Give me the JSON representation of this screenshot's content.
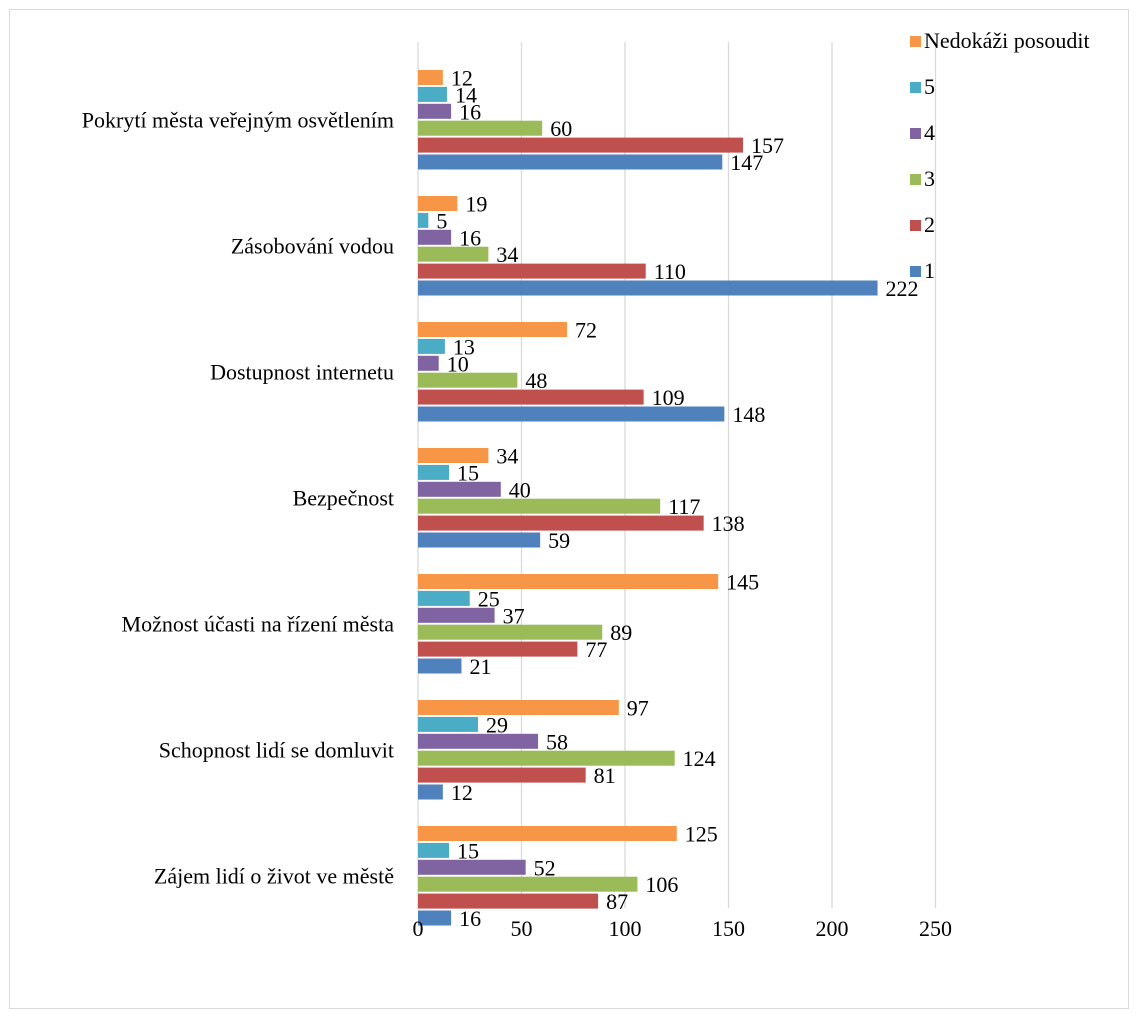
{
  "chart_data": {
    "type": "bar",
    "orientation": "horizontal",
    "categories": [
      "Pokrytí města veřejným osvětlením",
      "Zásobování vodou",
      "Dostupnost internetu",
      "Bezpečnost",
      "Možnost účasti na řízení města",
      "Schopnost lidí se domluvit",
      "Zájem lidí o život ve městě"
    ],
    "series": [
      {
        "name": "Nedokáži posoudit",
        "color": "#F79646",
        "values": [
          12,
          19,
          72,
          34,
          145,
          97,
          125
        ]
      },
      {
        "name": "5",
        "color": "#4BACC6",
        "values": [
          14,
          5,
          13,
          15,
          25,
          29,
          15
        ]
      },
      {
        "name": "4",
        "color": "#8064A2",
        "values": [
          16,
          16,
          10,
          40,
          37,
          58,
          52
        ]
      },
      {
        "name": "3",
        "color": "#9BBB59",
        "values": [
          60,
          34,
          48,
          117,
          89,
          124,
          106
        ]
      },
      {
        "name": "2",
        "color": "#C0504D",
        "values": [
          157,
          110,
          109,
          138,
          77,
          81,
          87
        ]
      },
      {
        "name": "1",
        "color": "#4F81BD",
        "values": [
          147,
          222,
          148,
          59,
          21,
          12,
          16
        ]
      }
    ],
    "xlim": [
      0,
      250
    ],
    "xticks": [
      "0",
      "50",
      "100",
      "150",
      "200",
      "250"
    ],
    "grid": true,
    "data_labels": true,
    "legend": "top-right"
  }
}
